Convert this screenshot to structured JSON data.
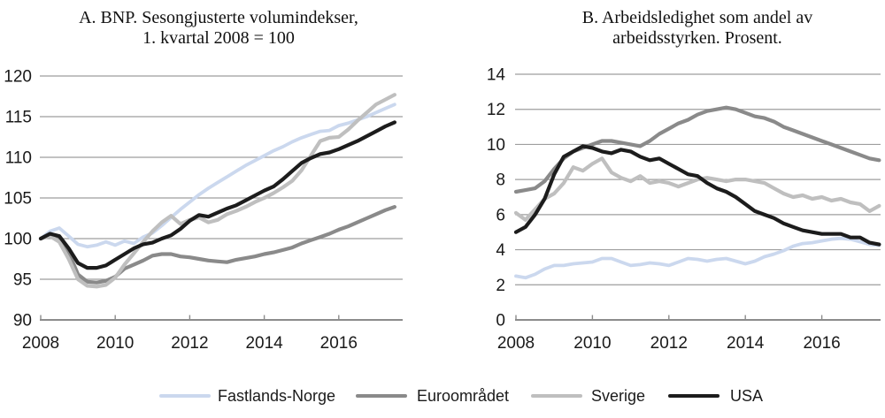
{
  "chart_data": [
    {
      "id": "panel_a",
      "type": "line",
      "title": "A. BNP. Sesongjusterte volumindekser, 1. kvartal 2008 = 100",
      "title_lines": [
        "A. BNP. Sesongjusterte volumindekser,",
        "1. kvartal 2008 = 100"
      ],
      "xlabel": "",
      "ylabel": "",
      "x_start": 2008.0,
      "x_step": 0.25,
      "xlim": [
        2008,
        2017.75
      ],
      "x_ticks": [
        2008,
        2010,
        2012,
        2014,
        2016
      ],
      "ylim": [
        90,
        120
      ],
      "y_ticks": [
        90,
        95,
        100,
        105,
        110,
        115,
        120
      ],
      "grid": true,
      "series": [
        {
          "name": "Fastlands-Norge",
          "color": "#cbd8ee",
          "width": 3.8,
          "values": [
            100.0,
            100.9,
            101.3,
            100.3,
            99.3,
            99.0,
            99.2,
            99.6,
            99.2,
            99.7,
            99.4,
            100.2,
            100.7,
            101.6,
            102.6,
            103.6,
            104.5,
            105.4,
            106.2,
            106.9,
            107.6,
            108.3,
            109.0,
            109.6,
            110.2,
            110.8,
            111.3,
            111.9,
            112.4,
            112.8,
            113.2,
            113.3,
            113.9,
            114.2,
            114.6,
            115.0,
            115.5,
            116.0,
            116.5
          ]
        },
        {
          "name": "Euroområdet",
          "color": "#8a8a8a",
          "width": 4.2,
          "values": [
            100.0,
            100.4,
            99.9,
            98.3,
            95.6,
            94.7,
            94.6,
            94.8,
            95.3,
            96.3,
            96.8,
            97.3,
            97.9,
            98.1,
            98.1,
            97.8,
            97.7,
            97.5,
            97.3,
            97.2,
            97.1,
            97.4,
            97.6,
            97.8,
            98.1,
            98.3,
            98.6,
            98.9,
            99.4,
            99.8,
            100.2,
            100.6,
            101.1,
            101.5,
            102.0,
            102.5,
            103.0,
            103.5,
            103.9
          ]
        },
        {
          "name": "Sverige",
          "color": "#bfbfbf",
          "width": 4.2,
          "values": [
            100.0,
            100.3,
            99.6,
            97.5,
            95.0,
            94.2,
            94.1,
            94.3,
            95.2,
            96.8,
            98.2,
            99.6,
            100.9,
            102.0,
            102.8,
            101.8,
            102.3,
            102.6,
            102.0,
            102.3,
            103.0,
            103.4,
            103.9,
            104.5,
            105.0,
            105.6,
            106.3,
            107.1,
            108.4,
            110.2,
            112.0,
            112.4,
            112.5,
            113.4,
            114.5,
            115.5,
            116.5,
            117.1,
            117.7
          ]
        },
        {
          "name": "USA",
          "color": "#1c1c1c",
          "width": 4.2,
          "values": [
            100.0,
            100.6,
            100.3,
            98.8,
            97.0,
            96.4,
            96.4,
            96.7,
            97.4,
            98.1,
            98.8,
            99.3,
            99.5,
            100.0,
            100.4,
            101.2,
            102.2,
            102.9,
            102.7,
            103.2,
            103.7,
            104.1,
            104.7,
            105.3,
            105.9,
            106.4,
            107.3,
            108.3,
            109.3,
            109.9,
            110.4,
            110.6,
            111.0,
            111.5,
            112.0,
            112.6,
            113.2,
            113.8,
            114.3
          ]
        }
      ]
    },
    {
      "id": "panel_b",
      "type": "line",
      "title": "B. Arbeidsledighet som andel av arbeidsstyrken. Prosent.",
      "title_lines": [
        "B. Arbeidsledighet som andel av",
        "arbeidsstyrken. Prosent."
      ],
      "xlabel": "",
      "ylabel": "",
      "x_start": 2008.0,
      "x_step": 0.25,
      "xlim": [
        2008,
        2017.6
      ],
      "x_ticks": [
        2008,
        2010,
        2012,
        2014,
        2016
      ],
      "ylim": [
        0,
        14
      ],
      "y_ticks": [
        0,
        2,
        4,
        6,
        8,
        10,
        12,
        14
      ],
      "grid": true,
      "series": [
        {
          "name": "Fastlands-Norge",
          "color": "#cbd8ee",
          "width": 3.8,
          "values": [
            2.5,
            2.4,
            2.6,
            2.9,
            3.1,
            3.1,
            3.2,
            3.25,
            3.3,
            3.5,
            3.5,
            3.3,
            3.1,
            3.15,
            3.25,
            3.2,
            3.1,
            3.3,
            3.5,
            3.45,
            3.35,
            3.45,
            3.5,
            3.35,
            3.2,
            3.35,
            3.6,
            3.75,
            3.95,
            4.2,
            4.35,
            4.4,
            4.5,
            4.6,
            4.65,
            4.6,
            4.45,
            4.3,
            4.25
          ]
        },
        {
          "name": "Euroområdet",
          "color": "#8a8a8a",
          "width": 4.2,
          "values": [
            7.3,
            7.4,
            7.5,
            7.9,
            8.6,
            9.2,
            9.6,
            9.8,
            10.0,
            10.2,
            10.2,
            10.1,
            10.0,
            9.9,
            10.2,
            10.6,
            10.9,
            11.2,
            11.4,
            11.7,
            11.9,
            12.0,
            12.1,
            12.0,
            11.8,
            11.6,
            11.5,
            11.3,
            11.0,
            10.8,
            10.6,
            10.4,
            10.2,
            10.0,
            9.8,
            9.6,
            9.4,
            9.2,
            9.1
          ]
        },
        {
          "name": "Sverige",
          "color": "#bfbfbf",
          "width": 4.2,
          "values": [
            6.1,
            5.7,
            6.3,
            6.9,
            7.2,
            7.8,
            8.7,
            8.5,
            8.9,
            9.2,
            8.4,
            8.1,
            7.9,
            8.2,
            7.8,
            7.9,
            7.8,
            7.6,
            7.8,
            8.0,
            8.1,
            8.0,
            7.9,
            8.0,
            8.0,
            7.9,
            7.8,
            7.5,
            7.2,
            7.0,
            7.1,
            6.9,
            7.0,
            6.8,
            6.9,
            6.7,
            6.6,
            6.2,
            6.5
          ]
        },
        {
          "name": "USA",
          "color": "#1c1c1c",
          "width": 4.2,
          "values": [
            5.0,
            5.3,
            6.0,
            6.9,
            8.3,
            9.3,
            9.6,
            9.9,
            9.8,
            9.6,
            9.5,
            9.7,
            9.6,
            9.3,
            9.1,
            9.2,
            8.9,
            8.6,
            8.3,
            8.2,
            7.8,
            7.5,
            7.3,
            7.0,
            6.6,
            6.2,
            6.0,
            5.8,
            5.5,
            5.3,
            5.1,
            5.0,
            4.9,
            4.9,
            4.9,
            4.7,
            4.7,
            4.4,
            4.3
          ]
        }
      ]
    }
  ],
  "legend": {
    "items": [
      {
        "label": "Fastlands-Norge",
        "color": "#cbd8ee"
      },
      {
        "label": "Euroområdet",
        "color": "#8a8a8a"
      },
      {
        "label": "Sverige",
        "color": "#bfbfbf"
      },
      {
        "label": "USA",
        "color": "#1c1c1c"
      }
    ]
  },
  "style": {
    "gridline_color": "#9e9e9e",
    "axis_color": "#8c8c8c",
    "tick_label_color": "#1a1a1a"
  }
}
